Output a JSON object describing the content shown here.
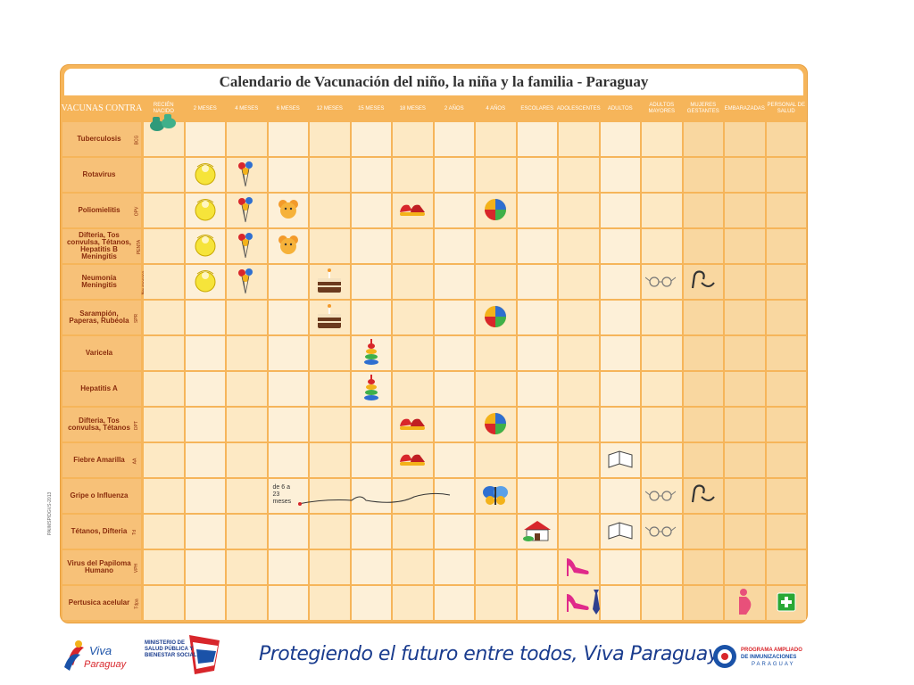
{
  "title": "Calendario de Vacunación del niño, la niña y la familia - Paraguay",
  "header": {
    "first": "VACUNAS CONTRA",
    "columns": [
      "RECIÉN NACIDO",
      "2 MESES",
      "4 MESES",
      "6 MESES",
      "12 MESES",
      "15 MESES",
      "18 MESES",
      "2 AÑOS",
      "4 AÑOS",
      "ESCOLARES",
      "ADOLESCENTES",
      "ADULTOS",
      "ADULTOS MAYORES",
      "MUJERES GESTANTES",
      "EMBARAZADAS",
      "PERSONAL DE SALUD"
    ]
  },
  "rows": [
    {
      "label": "Tuberculosis",
      "abbr": "BCG",
      "icons": [
        {
          "col": 0,
          "icon": "baby-shoes-icon"
        }
      ]
    },
    {
      "label": "Rotavirus",
      "abbr": "",
      "icons": [
        {
          "col": 1,
          "icon": "bib-icon"
        },
        {
          "col": 2,
          "icon": "balloons-icon"
        }
      ]
    },
    {
      "label": "Poliomielitis",
      "abbr": "OPV",
      "icons": [
        {
          "col": 1,
          "icon": "bib-icon"
        },
        {
          "col": 2,
          "icon": "balloons-icon"
        },
        {
          "col": 3,
          "icon": "teddy-icon"
        },
        {
          "col": 6,
          "icon": "shoes-icon"
        },
        {
          "col": 8,
          "icon": "ball-icon"
        }
      ]
    },
    {
      "label": "Difteria, Tos convulsa, Tétanos, Hepatitis B Meningitis",
      "abbr": "PENTA",
      "icons": [
        {
          "col": 1,
          "icon": "bib-icon"
        },
        {
          "col": 2,
          "icon": "balloons-icon"
        },
        {
          "col": 3,
          "icon": "teddy-icon"
        }
      ]
    },
    {
      "label": "Neumonía Meningitis",
      "abbr": "Neumococo",
      "icons": [
        {
          "col": 1,
          "icon": "bib-icon"
        },
        {
          "col": 2,
          "icon": "balloons-icon"
        },
        {
          "col": 4,
          "icon": "cake-icon"
        },
        {
          "col": 12,
          "icon": "glasses-icon"
        },
        {
          "col": 13,
          "icon": "cane-icon"
        }
      ]
    },
    {
      "label": "Sarampión, Paperas, Rubéola",
      "abbr": "SPR",
      "icons": [
        {
          "col": 4,
          "icon": "cake-icon"
        },
        {
          "col": 8,
          "icon": "ball-icon"
        }
      ]
    },
    {
      "label": "Varicela",
      "abbr": "",
      "icons": [
        {
          "col": 5,
          "icon": "stacking-rings-icon"
        }
      ]
    },
    {
      "label": "Hepatitis A",
      "abbr": "",
      "icons": [
        {
          "col": 5,
          "icon": "stacking-rings-icon"
        }
      ]
    },
    {
      "label": "Difteria, Tos convulsa, Tétanos",
      "abbr": "DPT",
      "icons": [
        {
          "col": 6,
          "icon": "shoes-icon"
        },
        {
          "col": 8,
          "icon": "ball-icon"
        }
      ]
    },
    {
      "label": "Fiebre Amarilla",
      "abbr": "AA",
      "icons": [
        {
          "col": 6,
          "icon": "shoes-icon"
        },
        {
          "col": 11,
          "icon": "book-icon"
        }
      ]
    },
    {
      "label": "Gripe o Influenza",
      "abbr": "",
      "icons": [
        {
          "col": 8,
          "icon": "butterfly-icon"
        },
        {
          "col": 12,
          "icon": "glasses-icon"
        },
        {
          "col": 13,
          "icon": "cane-icon"
        }
      ],
      "note": "de 6 a 23 meses"
    },
    {
      "label": "Tétanos, Difteria",
      "abbr": "Td",
      "icons": [
        {
          "col": 9,
          "icon": "school-icon"
        },
        {
          "col": 11,
          "icon": "book-icon"
        },
        {
          "col": 12,
          "icon": "glasses-icon"
        }
      ]
    },
    {
      "label": "Virus del Papiloma Humano",
      "abbr": "VPH",
      "icons": [
        {
          "col": 10,
          "icon": "high-heel-icon"
        }
      ]
    },
    {
      "label": "Pertusica acelular",
      "abbr": "Tdpa",
      "icons": [
        {
          "col": 10,
          "icon": "high-heel-icon"
        },
        {
          "col": 10,
          "icon": "tie-icon"
        },
        {
          "col": 14,
          "icon": "pregnant-icon"
        },
        {
          "col": 15,
          "icon": "health-cross-icon"
        }
      ]
    }
  ],
  "slogan": "Protegiendo el futuro entre todos, Viva Paraguay!",
  "logos": {
    "left": "Viva Paraguay",
    "ministry": "MINISTERIO DE SALUD PÚBLICA Y BIENESTAR SOCIAL",
    "right": "PROGRAMA AMPLIADO DE INMUNIZACIONES PARAGUAY"
  },
  "side_code": "PAI/MSP/DGVS-2013",
  "colors": {
    "orange": "#f6b55a",
    "header": "#f0a030",
    "cell": "#fde9c4",
    "cell_alt": "#fdf0d8",
    "late": "#f9d7a0",
    "title_text": "#333333",
    "label": "#8a2c0c",
    "slogan": "#1a3c8e"
  }
}
